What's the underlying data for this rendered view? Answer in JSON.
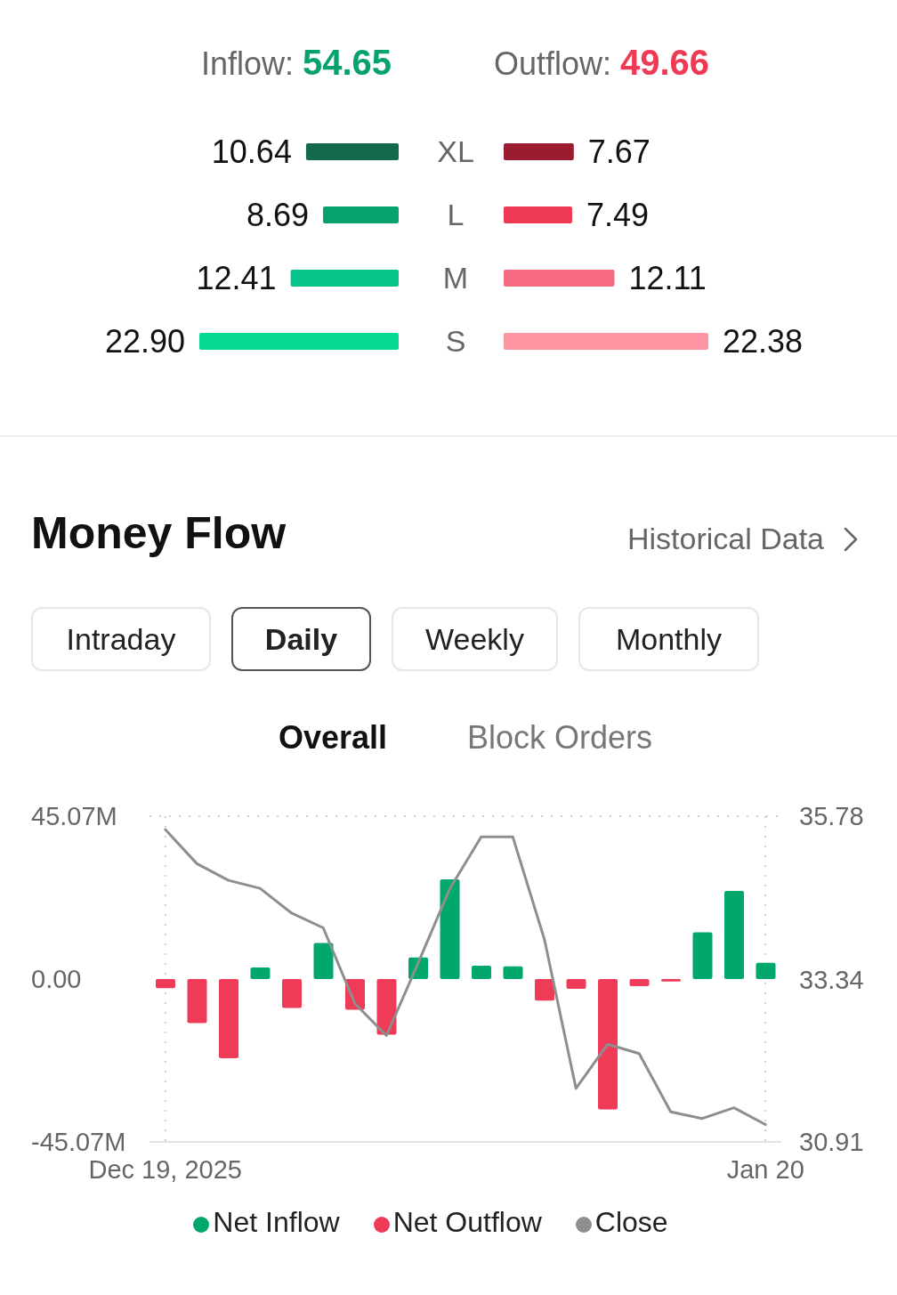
{
  "chart_data": [
    {
      "type": "bar",
      "orientation": "horizontal",
      "title": "Inflow: 54.65",
      "categories": [
        "XL",
        "L",
        "M",
        "S"
      ],
      "values": [
        10.64,
        8.69,
        12.41,
        22.9
      ],
      "value_labels": [
        "10.64",
        "8.69",
        "12.41",
        "22.90"
      ],
      "colors": [
        "#136b4c",
        "#07a16e",
        "#06c489",
        "#06d993"
      ],
      "tick_labels": "y"
    },
    {
      "type": "bar",
      "orientation": "horizontal",
      "title": "Outflow: 49.66",
      "categories": [
        null,
        null,
        null,
        null
      ],
      "values": [
        7.67,
        7.49,
        12.11,
        22.38
      ],
      "value_labels": [
        "7.67",
        "7.49",
        "12.11",
        "22.38"
      ],
      "colors": [
        "#9b1b30",
        "#ee3a55",
        "#f56a80",
        "#fd95a2"
      ],
      "tick_labels": false
    },
    {
      "type": "bar",
      "title": "Money Flow",
      "annotations": [
        "Historical Data",
        "Intraday",
        "Daily",
        "Weekly",
        "Monthly",
        "Overall",
        "Block Orders"
      ],
      "categories": [
        "Dec 19, 2025",
        null,
        null,
        null,
        null,
        null,
        null,
        null,
        null,
        null,
        null,
        null,
        null,
        null,
        null,
        null,
        null,
        null,
        null,
        "Jan 20"
      ],
      "stacked": true,
      "ylim": [
        -45.07,
        45.07
      ],
      "yticks": [
        {
          "value": 45.07,
          "label": "45.07M"
        },
        {
          "value": 0,
          "label": "0.00"
        },
        {
          "value": -45.07,
          "label": "-45.07M"
        }
      ],
      "y2lim": [
        30.91,
        35.78
      ],
      "y2ticks": [
        30.91,
        33.34,
        35.78
      ],
      "grid": true,
      "legend": "bottom",
      "marker": "none",
      "line_style": "solid",
      "series": [
        {
          "name": "Net Inflow",
          "type": "bar",
          "color": "#00a86b",
          "values": [
            null,
            null,
            null,
            3.2,
            null,
            10.0,
            null,
            null,
            6.0,
            27.6,
            3.7,
            3.5,
            null,
            null,
            null,
            null,
            null,
            12.9,
            24.4,
            4.5
          ]
        },
        {
          "name": "Net Outflow",
          "type": "bar",
          "color": "#ef3a58",
          "values": [
            -2.5,
            -12.2,
            -21.9,
            null,
            -8.0,
            null,
            -8.5,
            -15.4,
            null,
            null,
            null,
            null,
            -6.0,
            -2.7,
            -36.1,
            -2.0,
            -0.7,
            null,
            null,
            null
          ]
        },
        {
          "name": "Close",
          "type": "line",
          "axis": "y2",
          "color": "#8e8e8e",
          "values": [
            35.58,
            35.07,
            34.82,
            34.7,
            34.33,
            34.11,
            32.98,
            32.5,
            33.58,
            34.69,
            35.47,
            35.47,
            33.94,
            31.71,
            32.37,
            32.23,
            31.36,
            31.26,
            31.42,
            31.17
          ]
        }
      ]
    }
  ]
}
